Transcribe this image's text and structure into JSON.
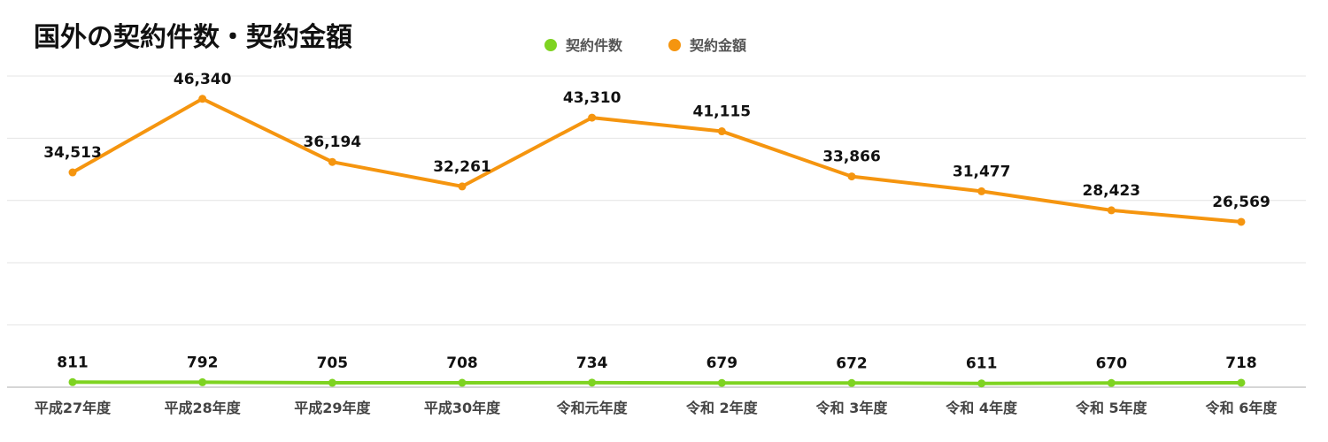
{
  "chart_data": {
    "type": "line",
    "title": "国外の契約件数・契約金額",
    "categories": [
      "平成27年度",
      "平成28年度",
      "平成29年度",
      "平成30年度",
      "令和元年度",
      "令和 2年度",
      "令和 3年度",
      "令和 4年度",
      "令和 5年度",
      "令和 6年度"
    ],
    "series": [
      {
        "name": "契約件数",
        "color": "#7ed321",
        "values": [
          811,
          792,
          705,
          708,
          734,
          679,
          672,
          611,
          670,
          718
        ],
        "value_labels": [
          "811",
          "792",
          "705",
          "708",
          "734",
          "679",
          "672",
          "611",
          "670",
          "718"
        ]
      },
      {
        "name": "契約金額",
        "color": "#f5950f",
        "values": [
          34513,
          46340,
          36194,
          32261,
          43310,
          41115,
          33866,
          31477,
          28423,
          26569
        ],
        "value_labels": [
          "34,513",
          "46,340",
          "36,194",
          "32,261",
          "43,310",
          "41,115",
          "33,866",
          "31,477",
          "28,423",
          "26,569"
        ]
      }
    ],
    "ylim": [
      0,
      50000
    ],
    "grid": true,
    "legend_position": "top"
  }
}
